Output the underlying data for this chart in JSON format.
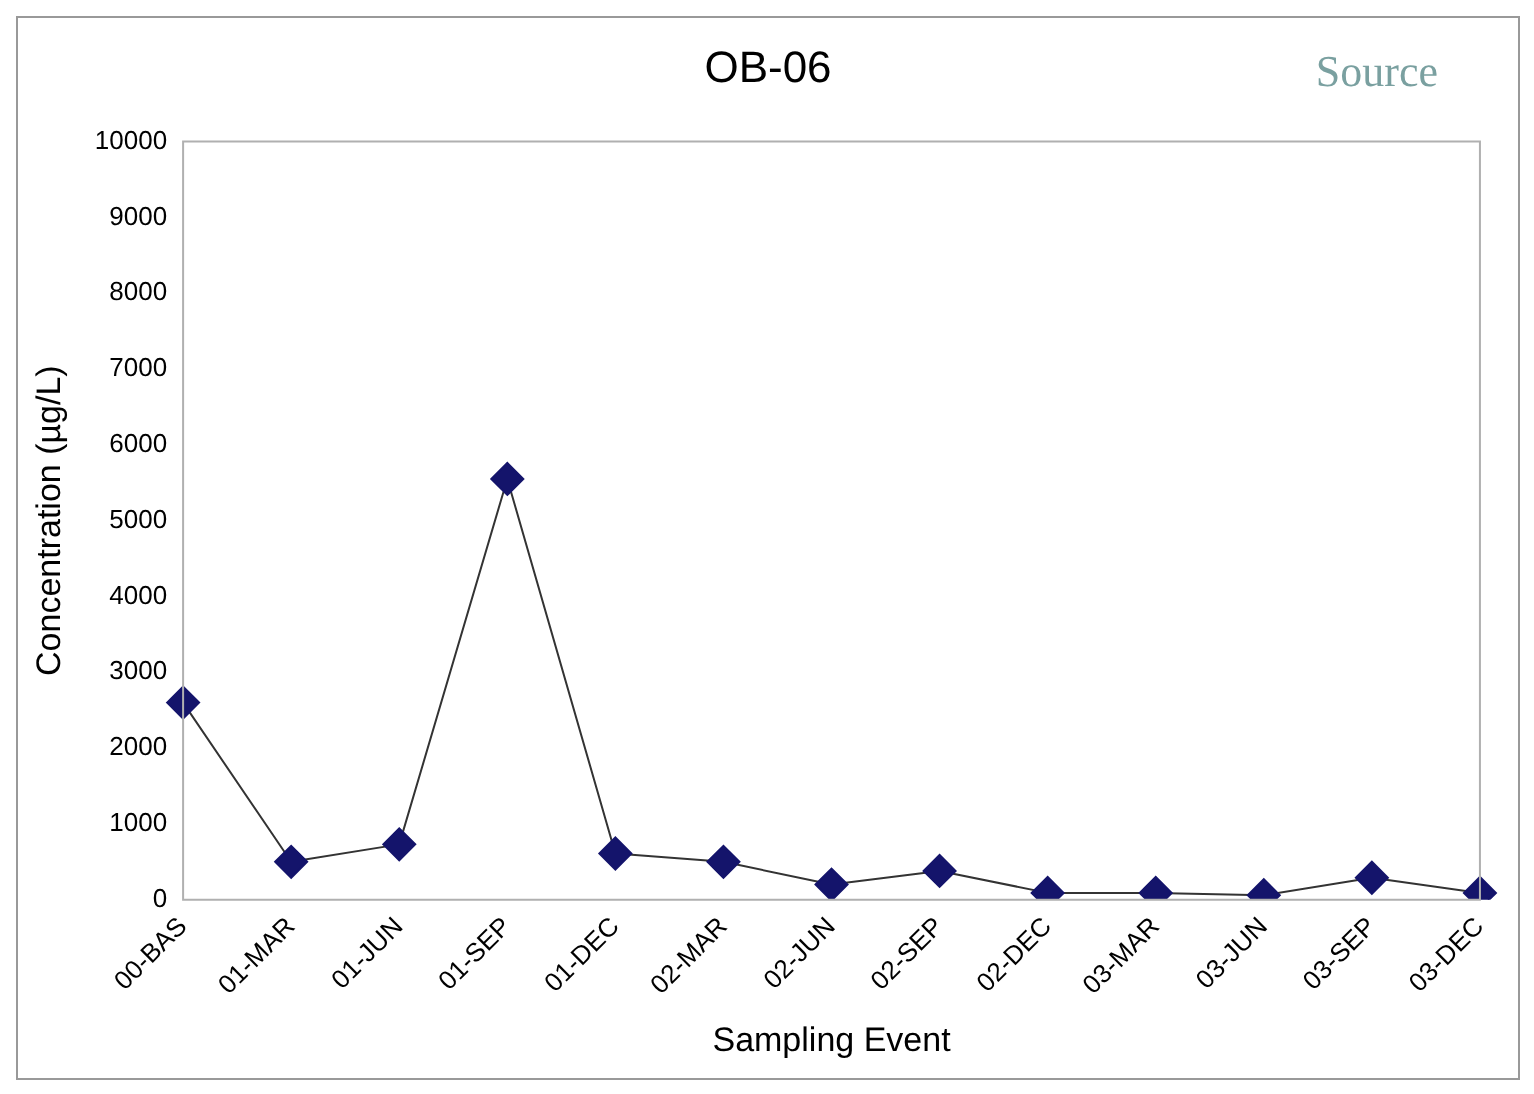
{
  "chart_data": {
    "type": "line",
    "title": "OB-06",
    "xlabel": "Sampling Event",
    "ylabel": "Concentration (µg/L)",
    "annotations": [
      "Source"
    ],
    "categories": [
      "00-BAS",
      "01-MAR",
      "01-JUN",
      "01-SEP",
      "01-DEC",
      "02-MAR",
      "02-JUN",
      "02-SEP",
      "02-DEC",
      "03-MAR",
      "03-JUN",
      "03-SEP",
      "03-DEC"
    ],
    "series": [
      {
        "color": "#14146b",
        "values": [
          2600,
          500,
          730,
          5550,
          610,
          500,
          200,
          380,
          90,
          90,
          60,
          290,
          90
        ]
      }
    ],
    "ylim": [
      0,
      10000
    ],
    "yticks": [
      0,
      1000,
      2000,
      3000,
      4000,
      5000,
      6000,
      7000,
      8000,
      9000,
      10000
    ],
    "grid": false,
    "legend": false,
    "marker": "diamond",
    "line_style": "solid"
  }
}
